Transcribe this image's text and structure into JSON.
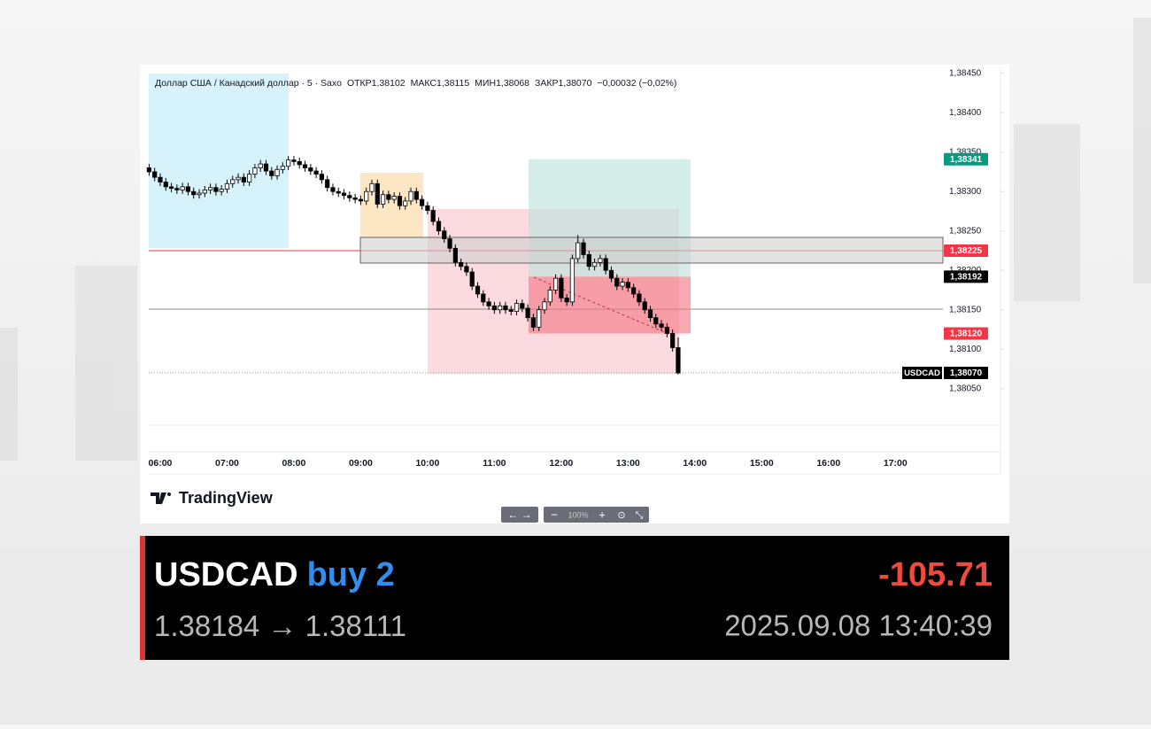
{
  "chart_data": {
    "type": "candlestick",
    "header": {
      "symbol": "Доллар США / Канадский доллар · 5 · Saxo",
      "open_label": "ОТКР",
      "open": "1,38102",
      "high_label": "МАКС",
      "high": "1,38115",
      "low_label": "МИН",
      "low": "1,38068",
      "close_label": "ЗАКР",
      "close": "1,38070",
      "change": "−0,00032 (−0,02%)"
    },
    "candles": [
      [
        1.3833,
        1.38335,
        1.3832,
        1.38325
      ],
      [
        1.38325,
        1.3833,
        1.38313,
        1.38318
      ],
      [
        1.38318,
        1.38323,
        1.38307,
        1.38312
      ],
      [
        1.38312,
        1.38317,
        1.38301,
        1.38306
      ],
      [
        1.38306,
        1.38311,
        1.38299,
        1.38304
      ],
      [
        1.38304,
        1.38309,
        1.38297,
        1.38302
      ],
      [
        1.38302,
        1.38311,
        1.38297,
        1.38306
      ],
      [
        1.38306,
        1.38311,
        1.38295,
        1.383
      ],
      [
        1.383,
        1.38305,
        1.38291,
        1.38296
      ],
      [
        1.38296,
        1.38303,
        1.38291,
        1.38298
      ],
      [
        1.38298,
        1.38307,
        1.38293,
        1.38302
      ],
      [
        1.38302,
        1.3831,
        1.38297,
        1.38305
      ],
      [
        1.38305,
        1.3831,
        1.38295,
        1.383
      ],
      [
        1.383,
        1.38308,
        1.38295,
        1.38303
      ],
      [
        1.38303,
        1.38315,
        1.38298,
        1.3831
      ],
      [
        1.3831,
        1.3832,
        1.38305,
        1.38315
      ],
      [
        1.38315,
        1.38323,
        1.3831,
        1.38318
      ],
      [
        1.38318,
        1.38323,
        1.38307,
        1.38312
      ],
      [
        1.38312,
        1.38327,
        1.38307,
        1.38322
      ],
      [
        1.38322,
        1.38335,
        1.38317,
        1.3833
      ],
      [
        1.3833,
        1.3834,
        1.38325,
        1.38335
      ],
      [
        1.38335,
        1.3834,
        1.38321,
        1.38326
      ],
      [
        1.38326,
        1.38331,
        1.38315,
        1.3832
      ],
      [
        1.3832,
        1.38333,
        1.38315,
        1.38328
      ],
      [
        1.38328,
        1.38337,
        1.38323,
        1.38332
      ],
      [
        1.38332,
        1.38345,
        1.38327,
        1.3834
      ],
      [
        1.3834,
        1.38345,
        1.38333,
        1.38338
      ],
      [
        1.38338,
        1.38343,
        1.38329,
        1.38334
      ],
      [
        1.38334,
        1.38339,
        1.38325,
        1.3833
      ],
      [
        1.3833,
        1.38335,
        1.38321,
        1.38326
      ],
      [
        1.38326,
        1.38331,
        1.38317,
        1.38322
      ],
      [
        1.38322,
        1.38327,
        1.3831,
        1.38315
      ],
      [
        1.38315,
        1.3832,
        1.383,
        1.38305
      ],
      [
        1.38305,
        1.3831,
        1.38295,
        1.383
      ],
      [
        1.383,
        1.38305,
        1.38293,
        1.38298
      ],
      [
        1.38298,
        1.38303,
        1.3829,
        1.38295
      ],
      [
        1.38295,
        1.383,
        1.38287,
        1.38292
      ],
      [
        1.38292,
        1.38297,
        1.38285,
        1.3829
      ],
      [
        1.3829,
        1.38295,
        1.38283,
        1.38288
      ],
      [
        1.38288,
        1.38305,
        1.38283,
        1.383
      ],
      [
        1.383,
        1.38315,
        1.38295,
        1.3831
      ],
      [
        1.3831,
        1.38315,
        1.38279,
        1.38284
      ],
      [
        1.38284,
        1.38301,
        1.38279,
        1.38296
      ],
      [
        1.38296,
        1.38301,
        1.38285,
        1.3829
      ],
      [
        1.3829,
        1.38299,
        1.38285,
        1.38294
      ],
      [
        1.38294,
        1.38299,
        1.38277,
        1.38282
      ],
      [
        1.38282,
        1.38293,
        1.38277,
        1.38288
      ],
      [
        1.38288,
        1.38305,
        1.38283,
        1.383
      ],
      [
        1.383,
        1.38305,
        1.38285,
        1.3829
      ],
      [
        1.3829,
        1.38295,
        1.38277,
        1.38282
      ],
      [
        1.38282,
        1.38287,
        1.38271,
        1.38276
      ],
      [
        1.38276,
        1.38281,
        1.38257,
        1.38262
      ],
      [
        1.38262,
        1.38267,
        1.38245,
        1.3825
      ],
      [
        1.3825,
        1.38255,
        1.38235,
        1.3824
      ],
      [
        1.3824,
        1.38245,
        1.38223,
        1.38228
      ],
      [
        1.38228,
        1.38233,
        1.38205,
        1.3821
      ],
      [
        1.3821,
        1.38215,
        1.382,
        1.38205
      ],
      [
        1.38205,
        1.3821,
        1.38193,
        1.38198
      ],
      [
        1.38198,
        1.38203,
        1.38175,
        1.3818
      ],
      [
        1.3818,
        1.38185,
        1.38165,
        1.3817
      ],
      [
        1.3817,
        1.38175,
        1.38155,
        1.3816
      ],
      [
        1.3816,
        1.38165,
        1.3815,
        1.38155
      ],
      [
        1.38155,
        1.3816,
        1.38145,
        1.3815
      ],
      [
        1.3815,
        1.3816,
        1.38145,
        1.38155
      ],
      [
        1.38155,
        1.3816,
        1.38145,
        1.3815
      ],
      [
        1.3815,
        1.38155,
        1.38143,
        1.38148
      ],
      [
        1.38148,
        1.38163,
        1.38143,
        1.38158
      ],
      [
        1.38158,
        1.38163,
        1.38147,
        1.38152
      ],
      [
        1.38152,
        1.38157,
        1.38135,
        1.3814
      ],
      [
        1.3814,
        1.38145,
        1.38123,
        1.38128
      ],
      [
        1.38128,
        1.38155,
        1.38123,
        1.3815
      ],
      [
        1.3815,
        1.38165,
        1.38145,
        1.3816
      ],
      [
        1.3816,
        1.3818,
        1.38155,
        1.38175
      ],
      [
        1.38175,
        1.38195,
        1.3817,
        1.3819
      ],
      [
        1.3819,
        1.38195,
        1.3816,
        1.38165
      ],
      [
        1.38165,
        1.3817,
        1.38155,
        1.3816
      ],
      [
        1.3816,
        1.3822,
        1.38155,
        1.38215
      ],
      [
        1.38215,
        1.38245,
        1.3821,
        1.38235
      ],
      [
        1.38235,
        1.3824,
        1.38215,
        1.3822
      ],
      [
        1.3822,
        1.38225,
        1.382,
        1.38205
      ],
      [
        1.38205,
        1.38215,
        1.382,
        1.3821
      ],
      [
        1.3821,
        1.3822,
        1.38205,
        1.38215
      ],
      [
        1.38215,
        1.3822,
        1.38195,
        1.382
      ],
      [
        1.382,
        1.38205,
        1.38185,
        1.3819
      ],
      [
        1.3819,
        1.38195,
        1.38175,
        1.3818
      ],
      [
        1.3818,
        1.3819,
        1.38175,
        1.38185
      ],
      [
        1.38185,
        1.3819,
        1.38173,
        1.38178
      ],
      [
        1.38178,
        1.38183,
        1.38165,
        1.3817
      ],
      [
        1.3817,
        1.38175,
        1.38155,
        1.3816
      ],
      [
        1.3816,
        1.38165,
        1.38145,
        1.3815
      ],
      [
        1.3815,
        1.38155,
        1.38135,
        1.3814
      ],
      [
        1.3814,
        1.38145,
        1.38127,
        1.38132
      ],
      [
        1.38132,
        1.38137,
        1.38123,
        1.38128
      ],
      [
        1.38128,
        1.38133,
        1.38115,
        1.3812
      ],
      [
        1.3812,
        1.38125,
        1.38097,
        1.38102
      ],
      [
        1.38102,
        1.38115,
        1.38068,
        1.3807
      ]
    ],
    "ylim": [
      1.3797,
      1.38453
    ],
    "yticks": [
      {
        "value": 1.3845,
        "label": "1,38450"
      },
      {
        "value": 1.384,
        "label": "1,38400"
      },
      {
        "value": 1.3835,
        "label": "1,38350"
      },
      {
        "value": 1.383,
        "label": "1,38300"
      },
      {
        "value": 1.3825,
        "label": "1,38250"
      },
      {
        "value": 1.382,
        "label": "1,38200"
      },
      {
        "value": 1.3815,
        "label": "1,38150"
      },
      {
        "value": 1.381,
        "label": "1,38100"
      },
      {
        "value": 1.3805,
        "label": "1,38050"
      }
    ],
    "xtick_labels": [
      "06:00",
      "07:00",
      "08:00",
      "09:00",
      "10:00",
      "11:00",
      "12:00",
      "13:00",
      "14:00",
      "15:00",
      "16:00",
      "17:00"
    ],
    "price_labels": [
      {
        "value": 1.38341,
        "label": "1,38341",
        "color": "#089981"
      },
      {
        "value": 1.38225,
        "label": "1,38225",
        "color": "#f23645"
      },
      {
        "value": 1.38192,
        "label": "1,38192",
        "color": "#000000"
      },
      {
        "value": 1.3812,
        "label": "1,38120",
        "color": "#f23645"
      },
      {
        "value": 1.3807,
        "label": "1,38070",
        "color": "#000000",
        "name": "USDCAD"
      }
    ],
    "brand": "TradingView",
    "zoom": "100%"
  },
  "trade_card": {
    "symbol": "USDCAD",
    "side": "buy 2",
    "profit": "-105.71",
    "entry": "1.38184",
    "exit": "1.38111",
    "time": "2025.09.08 13:40:39"
  }
}
